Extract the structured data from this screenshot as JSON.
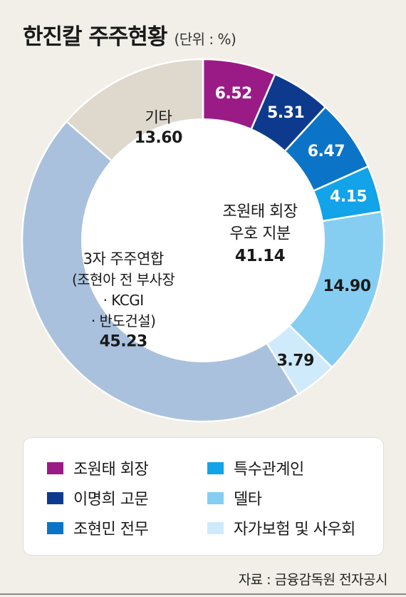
{
  "header": {
    "title": "한진칼 주주현황",
    "unit": "(단위 : %)"
  },
  "chart_data": {
    "type": "pie",
    "title": "한진칼 주주현황",
    "unit": "%",
    "inner_group": {
      "label_lines": [
        "조원태 회장",
        "우호 지분"
      ],
      "value_label": "41.14",
      "value": 41.14
    },
    "slices": [
      {
        "key": "chairman",
        "name": "조원태 회장",
        "value": 6.52,
        "label": "6.52",
        "color": "#9b1b86",
        "group": "inner",
        "label_color": "#ffffff"
      },
      {
        "key": "advisor",
        "name": "이명희 고문",
        "value": 5.31,
        "label": "5.31",
        "color": "#0d3a8c",
        "group": "inner",
        "label_color": "#ffffff"
      },
      {
        "key": "executive",
        "name": "조현민 전무",
        "value": 6.47,
        "label": "6.47",
        "color": "#0b74c6",
        "group": "inner",
        "label_color": "#ffffff"
      },
      {
        "key": "related",
        "name": "특수관계인",
        "value": 4.15,
        "label": "4.15",
        "color": "#12a3e8",
        "group": "inner",
        "label_color": "#ffffff"
      },
      {
        "key": "delta",
        "name": "델타",
        "value": 14.9,
        "label": "14.90",
        "color": "#86cdf2",
        "group": "inner",
        "label_color": "#1a1a1a"
      },
      {
        "key": "insurance",
        "name": "자가보험 및 사우회",
        "value": 3.79,
        "label": "3.79",
        "color": "#cfeafa",
        "group": "inner",
        "label_color": "#1a1a1a"
      },
      {
        "key": "alliance",
        "name": "3자 주주연합",
        "value": 45.23,
        "label_lines": [
          "3자 주주연합",
          "(조현아 전 부사장",
          "· KCGI",
          "· 반도건설)"
        ],
        "label": "45.23",
        "color": "#a9c1dd",
        "group": "outer",
        "label_color": "#1a1a1a"
      },
      {
        "key": "others",
        "name": "기타",
        "value": 13.6,
        "label_lines": [
          "기타"
        ],
        "label": "13.60",
        "color": "#ded8cd",
        "group": "outer",
        "label_color": "#1a1a1a"
      }
    ]
  },
  "legend": {
    "items": [
      {
        "label": "조원태 회장",
        "color": "#9b1b86"
      },
      {
        "label": "특수관계인",
        "color": "#12a3e8"
      },
      {
        "label": "이명희 고문",
        "color": "#0d3a8c"
      },
      {
        "label": "델타",
        "color": "#86cdf2"
      },
      {
        "label": "조현민 전무",
        "color": "#0b74c6"
      },
      {
        "label": "자가보험 및 사우회",
        "color": "#cfeafa"
      }
    ]
  },
  "source": "자료 : 금융감독원 전자공시"
}
